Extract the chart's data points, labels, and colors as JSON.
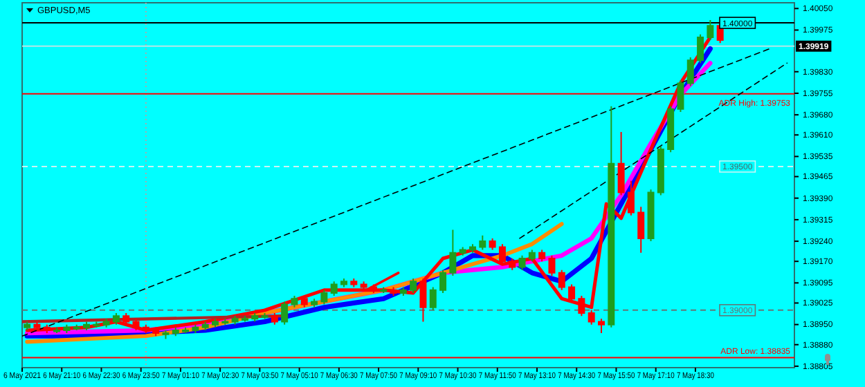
{
  "chart_data": {
    "type": "candlestick",
    "title": "GBPUSD,M5",
    "xlim": [
      "2021-05-06T19:50",
      "2021-05-07T21:50"
    ],
    "xticks": [
      {
        "value": "2021-05-06T19:50",
        "label": "6 May 2021"
      },
      {
        "value": "2021-05-06T21:10",
        "label": "6 May 21:10"
      },
      {
        "value": "2021-05-06T22:30",
        "label": "6 May 22:30"
      },
      {
        "value": "2021-05-06T23:50",
        "label": "6 May 23:50"
      },
      {
        "value": "2021-05-07T01:10",
        "label": "7 May 01:10"
      },
      {
        "value": "2021-05-07T02:30",
        "label": "7 May 02:30"
      },
      {
        "value": "2021-05-07T03:50",
        "label": "7 May 03:50"
      },
      {
        "value": "2021-05-07T05:10",
        "label": "7 May 05:10"
      },
      {
        "value": "2021-05-07T06:30",
        "label": "7 May 06:30"
      },
      {
        "value": "2021-05-07T07:50",
        "label": "7 May 07:50"
      },
      {
        "value": "2021-05-07T09:10",
        "label": "7 May 09:10"
      },
      {
        "value": "2021-05-07T10:30",
        "label": "7 May 10:30"
      },
      {
        "value": "2021-05-07T11:50",
        "label": "7 May 11:50"
      },
      {
        "value": "2021-05-07T13:10",
        "label": "7 May 13:10"
      },
      {
        "value": "2021-05-07T14:30",
        "label": "7 May 14:30"
      },
      {
        "value": "2021-05-07T15:50",
        "label": "7 May 15:50"
      },
      {
        "value": "2021-05-07T17:10",
        "label": "7 May 17:10"
      },
      {
        "value": "2021-05-07T18:30",
        "label": "7 May 18:30"
      }
    ],
    "ylim": [
      1.388,
      1.4007
    ],
    "yticks": [
      {
        "value": 1.4005,
        "label": "1.40050"
      },
      {
        "value": 1.39975,
        "label": "1.39975"
      },
      {
        "value": 1.3983,
        "label": "1.39830"
      },
      {
        "value": 1.39755,
        "label": "1.39755"
      },
      {
        "value": 1.3968,
        "label": "1.39680"
      },
      {
        "value": 1.3961,
        "label": "1.39610"
      },
      {
        "value": 1.39535,
        "label": "1.39535"
      },
      {
        "value": 1.39465,
        "label": "1.39465"
      },
      {
        "value": 1.3939,
        "label": "1.39390"
      },
      {
        "value": 1.39315,
        "label": "1.39315"
      },
      {
        "value": 1.3924,
        "label": "1.39240"
      },
      {
        "value": 1.3917,
        "label": "1.39170"
      },
      {
        "value": 1.39095,
        "label": "1.39095"
      },
      {
        "value": 1.39025,
        "label": "1.39025"
      },
      {
        "value": 1.3895,
        "label": "1.38950"
      },
      {
        "value": 1.3888,
        "label": "1.38880"
      },
      {
        "value": 1.38805,
        "label": "1.38805"
      }
    ],
    "x": [
      "2021-05-06T20:00",
      "2021-05-06T20:20",
      "2021-05-06T20:40",
      "2021-05-06T21:00",
      "2021-05-06T21:20",
      "2021-05-06T21:40",
      "2021-05-06T22:00",
      "2021-05-06T22:20",
      "2021-05-06T22:40",
      "2021-05-06T23:00",
      "2021-05-06T23:20",
      "2021-05-06T23:40",
      "2021-05-07T00:00",
      "2021-05-07T00:20",
      "2021-05-07T00:40",
      "2021-05-07T01:00",
      "2021-05-07T01:20",
      "2021-05-07T01:40",
      "2021-05-07T02:00",
      "2021-05-07T02:20",
      "2021-05-07T02:40",
      "2021-05-07T03:00",
      "2021-05-07T03:20",
      "2021-05-07T03:40",
      "2021-05-07T04:00",
      "2021-05-07T04:20",
      "2021-05-07T04:40",
      "2021-05-07T05:00",
      "2021-05-07T05:20",
      "2021-05-07T05:40",
      "2021-05-07T06:00",
      "2021-05-07T06:20",
      "2021-05-07T06:40",
      "2021-05-07T07:00",
      "2021-05-07T07:20",
      "2021-05-07T07:40",
      "2021-05-07T08:00",
      "2021-05-07T08:20",
      "2021-05-07T08:40",
      "2021-05-07T09:00",
      "2021-05-07T09:20",
      "2021-05-07T09:40",
      "2021-05-07T10:00",
      "2021-05-07T10:20",
      "2021-05-07T10:40",
      "2021-05-07T11:00",
      "2021-05-07T11:20",
      "2021-05-07T11:40",
      "2021-05-07T12:00",
      "2021-05-07T12:20",
      "2021-05-07T12:40",
      "2021-05-07T13:00",
      "2021-05-07T13:20",
      "2021-05-07T13:40",
      "2021-05-07T14:00",
      "2021-05-07T14:20",
      "2021-05-07T14:40",
      "2021-05-07T15:00",
      "2021-05-07T15:20",
      "2021-05-07T15:40",
      "2021-05-07T16:00",
      "2021-05-07T16:20",
      "2021-05-07T16:40",
      "2021-05-07T17:00",
      "2021-05-07T17:20",
      "2021-05-07T17:40",
      "2021-05-07T18:00",
      "2021-05-07T18:20",
      "2021-05-07T18:40",
      "2021-05-07T19:00",
      "2021-05-07T19:20"
    ],
    "ohlc": [
      [
        1.3894,
        1.3896,
        1.3893,
        1.3895
      ],
      [
        1.3895,
        1.3896,
        1.3893,
        1.3894
      ],
      [
        1.3894,
        1.3895,
        1.3892,
        1.3893
      ],
      [
        1.3893,
        1.3894,
        1.3892,
        1.3893
      ],
      [
        1.3893,
        1.3895,
        1.3892,
        1.3894
      ],
      [
        1.3894,
        1.3895,
        1.3893,
        1.3894
      ],
      [
        1.3894,
        1.3896,
        1.3893,
        1.3895
      ],
      [
        1.3895,
        1.3896,
        1.3894,
        1.3895
      ],
      [
        1.3895,
        1.3897,
        1.3894,
        1.3896
      ],
      [
        1.3896,
        1.3899,
        1.3895,
        1.3898
      ],
      [
        1.3898,
        1.3899,
        1.3895,
        1.3896
      ],
      [
        1.3896,
        1.3897,
        1.3893,
        1.3894
      ],
      [
        1.3894,
        1.3895,
        1.3892,
        1.3893
      ],
      [
        1.3893,
        1.3894,
        1.3891,
        1.3892
      ],
      [
        1.3892,
        1.3893,
        1.389,
        1.3892
      ],
      [
        1.3892,
        1.3894,
        1.3891,
        1.3893
      ],
      [
        1.3893,
        1.3894,
        1.3892,
        1.3893
      ],
      [
        1.3893,
        1.3895,
        1.3892,
        1.3894
      ],
      [
        1.3894,
        1.3896,
        1.3893,
        1.3895
      ],
      [
        1.3895,
        1.3897,
        1.3894,
        1.3896
      ],
      [
        1.3896,
        1.3897,
        1.3895,
        1.3896
      ],
      [
        1.3896,
        1.3898,
        1.3895,
        1.3897
      ],
      [
        1.3897,
        1.3898,
        1.3896,
        1.3897
      ],
      [
        1.3897,
        1.3899,
        1.3896,
        1.3898
      ],
      [
        1.3898,
        1.3899,
        1.3897,
        1.3898
      ],
      [
        1.3898,
        1.3899,
        1.3895,
        1.3896
      ],
      [
        1.3896,
        1.3903,
        1.3895,
        1.3902
      ],
      [
        1.3902,
        1.3905,
        1.3901,
        1.3904
      ],
      [
        1.3904,
        1.3905,
        1.3901,
        1.3902
      ],
      [
        1.3902,
        1.3904,
        1.3901,
        1.3903
      ],
      [
        1.3903,
        1.3907,
        1.3902,
        1.3906
      ],
      [
        1.3906,
        1.391,
        1.3905,
        1.3909
      ],
      [
        1.3909,
        1.3911,
        1.3908,
        1.391
      ],
      [
        1.391,
        1.3911,
        1.3908,
        1.3909
      ],
      [
        1.3909,
        1.391,
        1.3907,
        1.3908
      ],
      [
        1.3908,
        1.3909,
        1.3906,
        1.3907
      ],
      [
        1.3907,
        1.3908,
        1.3906,
        1.3907
      ],
      [
        1.3907,
        1.3908,
        1.3905,
        1.3906
      ],
      [
        1.3906,
        1.3908,
        1.3905,
        1.3907
      ],
      [
        1.3907,
        1.3911,
        1.3906,
        1.391
      ],
      [
        1.391,
        1.3911,
        1.3896,
        1.3901
      ],
      [
        1.3901,
        1.3908,
        1.39,
        1.3907
      ],
      [
        1.3907,
        1.3914,
        1.3906,
        1.3913
      ],
      [
        1.3913,
        1.3928,
        1.3912,
        1.392
      ],
      [
        1.392,
        1.3922,
        1.3919,
        1.3921
      ],
      [
        1.3921,
        1.3923,
        1.392,
        1.3922
      ],
      [
        1.3922,
        1.3926,
        1.3921,
        1.3924
      ],
      [
        1.3924,
        1.3925,
        1.3921,
        1.3922
      ],
      [
        1.3922,
        1.3923,
        1.3916,
        1.3917
      ],
      [
        1.3917,
        1.3918,
        1.3914,
        1.3915
      ],
      [
        1.3915,
        1.3919,
        1.3914,
        1.3918
      ],
      [
        1.3918,
        1.3921,
        1.3917,
        1.392
      ],
      [
        1.392,
        1.3921,
        1.3917,
        1.3918
      ],
      [
        1.3918,
        1.3919,
        1.3912,
        1.3913
      ],
      [
        1.3913,
        1.3914,
        1.3907,
        1.3908
      ],
      [
        1.3908,
        1.3909,
        1.3903,
        1.3904
      ],
      [
        1.3904,
        1.3905,
        1.3898,
        1.3899
      ],
      [
        1.3899,
        1.39,
        1.3895,
        1.3896
      ],
      [
        1.3896,
        1.3897,
        1.3892,
        1.3895
      ],
      [
        1.3895,
        1.3971,
        1.3894,
        1.3951
      ],
      [
        1.3951,
        1.3962,
        1.394,
        1.3941
      ],
      [
        1.3941,
        1.3945,
        1.3933,
        1.3934
      ],
      [
        1.3934,
        1.3936,
        1.392,
        1.3925
      ],
      [
        1.3925,
        1.3942,
        1.3924,
        1.3941
      ],
      [
        1.3941,
        1.3957,
        1.394,
        1.3956
      ],
      [
        1.3956,
        1.3971,
        1.3955,
        1.397
      ],
      [
        1.397,
        1.398,
        1.3969,
        1.3979
      ],
      [
        1.3979,
        1.3988,
        1.3978,
        1.3987
      ],
      [
        1.3987,
        1.3996,
        1.3986,
        1.3995
      ],
      [
        1.3995,
        1.4001,
        1.3994,
        1.3999
      ],
      [
        1.3999,
        1.4,
        1.3993,
        1.3994
      ]
    ],
    "colors": [
      "#1e9e1e",
      "#ff0000",
      "#ff0000",
      "#1e9e1e",
      "#1e9e1e",
      "#1e9e1e",
      "#1e9e1e",
      "#1e9e1e",
      "#1e9e1e",
      "#1e9e1e",
      "#ff0000",
      "#ff0000",
      "#ff0000",
      "#ff0000",
      "#1e9e1e",
      "#1e9e1e",
      "#1e9e1e",
      "#1e9e1e",
      "#1e9e1e",
      "#1e9e1e",
      "#1e9e1e",
      "#1e9e1e",
      "#1e9e1e",
      "#1e9e1e",
      "#1e9e1e",
      "#ff0000",
      "#1e9e1e",
      "#1e9e1e",
      "#ff0000",
      "#1e9e1e",
      "#1e9e1e",
      "#1e9e1e",
      "#1e9e1e",
      "#ff0000",
      "#ff0000",
      "#ff0000",
      "#1e9e1e",
      "#ff0000",
      "#1e9e1e",
      "#1e9e1e",
      "#ff0000",
      "#1e9e1e",
      "#1e9e1e",
      "#1e9e1e",
      "#1e9e1e",
      "#1e9e1e",
      "#1e9e1e",
      "#ff0000",
      "#ff0000",
      "#ff0000",
      "#1e9e1e",
      "#1e9e1e",
      "#ff0000",
      "#ff0000",
      "#ff0000",
      "#ff0000",
      "#ff0000",
      "#ff0000",
      "#ff0000",
      "#1e9e1e",
      "#ff0000",
      "#ff0000",
      "#ff0000",
      "#1e9e1e",
      "#1e9e1e",
      "#1e9e1e",
      "#1e9e1e",
      "#1e9e1e",
      "#1e9e1e",
      "#1e9e1e",
      "#ff0000"
    ],
    "series": [
      {
        "type": "line",
        "color": "#0000ff",
        "x": [
          "2021-05-06T20:00",
          "2021-05-06T22:00",
          "2021-05-07T00:00",
          "2021-05-07T02:00",
          "2021-05-07T04:00",
          "2021-05-07T06:00",
          "2021-05-07T08:00",
          "2021-05-07T10:00",
          "2021-05-07T11:00",
          "2021-05-07T12:00",
          "2021-05-07T13:00",
          "2021-05-07T14:00",
          "2021-05-07T15:00",
          "2021-05-07T16:00",
          "2021-05-07T17:00",
          "2021-05-07T18:00",
          "2021-05-07T19:00"
        ],
        "values": [
          1.3891,
          1.3891,
          1.3892,
          1.3893,
          1.3896,
          1.3901,
          1.3904,
          1.3913,
          1.3919,
          1.3919,
          1.3913,
          1.391,
          1.3918,
          1.3937,
          1.3956,
          1.3975,
          1.3991
        ]
      },
      {
        "type": "line",
        "color": "#ff00ff",
        "x": [
          "2021-05-06T20:00",
          "2021-05-07T00:00",
          "2021-05-07T02:00",
          "2021-05-07T04:00",
          "2021-05-07T06:00",
          "2021-05-07T08:00",
          "2021-05-07T10:00",
          "2021-05-07T12:00",
          "2021-05-07T13:00",
          "2021-05-07T14:00",
          "2021-05-07T15:00",
          "2021-05-07T16:00",
          "2021-05-07T17:00",
          "2021-05-07T18:00",
          "2021-05-07T19:00"
        ],
        "values": [
          1.3892,
          1.3893,
          1.3895,
          1.3899,
          1.3903,
          1.3907,
          1.3913,
          1.3915,
          1.3917,
          1.3919,
          1.3925,
          1.394,
          1.3958,
          1.3975,
          1.3986
        ]
      },
      {
        "type": "line",
        "color": "#ff8c00",
        "x": [
          "2021-05-06T20:00",
          "2021-05-07T00:00",
          "2021-05-07T02:00",
          "2021-05-07T04:00",
          "2021-05-07T06:00",
          "2021-05-07T08:00",
          "2021-05-07T10:00",
          "2021-05-07T12:00",
          "2021-05-07T13:00",
          "2021-05-07T14:00"
        ],
        "values": [
          1.3889,
          1.3891,
          1.3894,
          1.3899,
          1.3903,
          1.3907,
          1.3913,
          1.3919,
          1.3923,
          1.393
        ]
      },
      {
        "type": "line",
        "color": "#ff0000",
        "x": [
          "2021-05-06T20:00",
          "2021-05-06T22:00",
          "2021-05-06T23:00",
          "2021-05-07T00:00",
          "2021-05-07T02:00",
          "2021-05-07T04:00",
          "2021-05-07T06:00",
          "2021-05-07T08:00",
          "2021-05-07T09:00",
          "2021-05-07T10:00",
          "2021-05-07T11:00",
          "2021-05-07T12:00",
          "2021-05-07T13:00",
          "2021-05-07T14:00",
          "2021-05-07T15:00",
          "2021-05-07T15:30",
          "2021-05-07T16:00",
          "2021-05-07T17:00",
          "2021-05-07T18:00",
          "2021-05-07T19:00"
        ],
        "values": [
          1.3893,
          1.3894,
          1.3896,
          1.3893,
          1.3896,
          1.39,
          1.3907,
          1.3907,
          1.3906,
          1.3918,
          1.3921,
          1.3916,
          1.3918,
          1.3904,
          1.3901,
          1.3937,
          1.3932,
          1.3956,
          1.3979,
          1.3995
        ]
      },
      {
        "type": "line",
        "color": "#b22222",
        "x": [
          "2021-05-06T19:50",
          "2021-05-07T04:35"
        ],
        "values": [
          1.3896,
          1.3898
        ]
      },
      {
        "type": "line",
        "color": "#ff0000",
        "x": [
          "2021-05-07T07:25",
          "2021-05-07T08:30"
        ],
        "values": [
          1.3907,
          1.3913
        ]
      },
      {
        "type": "line",
        "color": "#000000",
        "line_style": "dashed",
        "x": [
          "2021-05-06T19:50",
          "2021-05-07T21:00"
        ],
        "values": [
          1.3891,
          1.3991
        ]
      },
      {
        "type": "line",
        "color": "#000000",
        "line_style": "dashed",
        "x": [
          "2021-05-07T12:35",
          "2021-05-07T21:35"
        ],
        "values": [
          1.3925,
          1.3986
        ]
      }
    ],
    "ref_lines": [
      {
        "axis": "x",
        "value": "2021-05-07T00:00",
        "color": "#a9a9a9",
        "line_style": "dotted"
      },
      {
        "axis": "y",
        "value": 1.4,
        "label": "1.40000",
        "color": "#000000"
      },
      {
        "axis": "y",
        "value": 1.39919,
        "label": "1.39919",
        "color": "#b4e6e6"
      },
      {
        "axis": "y",
        "value": 1.39753,
        "label": "ADR High: 1.39753",
        "color": "#ff0000"
      },
      {
        "axis": "y",
        "value": 1.395,
        "label": "1.39500",
        "color": "#c8f5f5",
        "line_style": "dashed"
      },
      {
        "axis": "y",
        "value": 1.39,
        "label": "1.39000",
        "color": "#607878",
        "line_style": "dashed"
      },
      {
        "axis": "y",
        "value": 1.38835,
        "label": "ADR Low: 1.38835",
        "color": "#ff0000"
      }
    ]
  }
}
